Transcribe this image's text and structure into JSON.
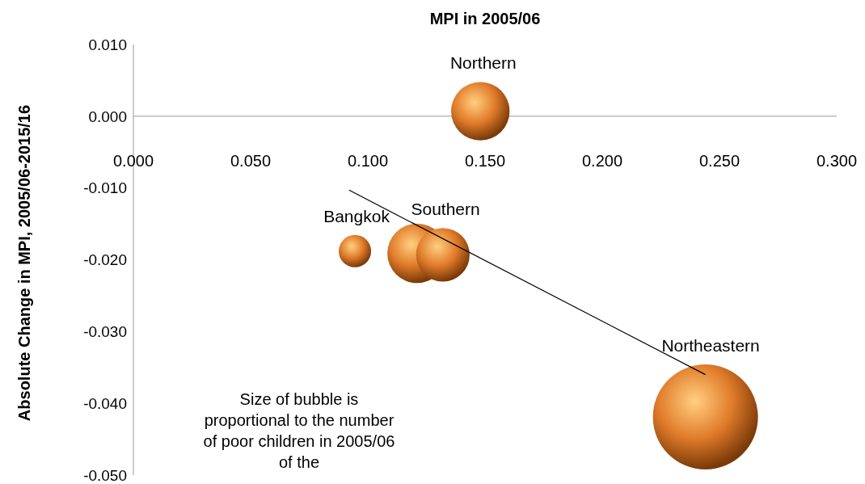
{
  "chart_data": {
    "type": "bubble",
    "xlabel": "MPI in 2005/06",
    "ylabel": "Absolute Change in MPI, 2005/06-2015/16",
    "annotations": [
      "Size of bubble is proportional to the number of poor children in 2005/06 of the"
    ],
    "xlim": [
      0,
      0.3
    ],
    "xticks": [
      {
        "value": 0,
        "label": "0.000"
      },
      {
        "value": 0.05,
        "label": "0.050"
      },
      {
        "value": 0.1,
        "label": "0.100"
      },
      {
        "value": 0.15,
        "label": "0.150"
      },
      {
        "value": 0.2,
        "label": "0.200"
      },
      {
        "value": 0.25,
        "label": "0.250"
      },
      {
        "value": 0.3,
        "label": "0.300"
      }
    ],
    "ylim": [
      -0.05,
      0.01
    ],
    "yticks": [
      {
        "value": 0.01,
        "label": "0.010"
      },
      {
        "value": 0,
        "label": "0.000"
      },
      {
        "value": -0.01,
        "label": "-0.010"
      },
      {
        "value": -0.02,
        "label": "-0.020"
      },
      {
        "value": -0.03,
        "label": "-0.030"
      },
      {
        "value": -0.04,
        "label": "-0.040"
      },
      {
        "value": -0.05,
        "label": "-0.050"
      }
    ],
    "series": [
      {
        "name": "Northern",
        "color": "#e07b2a",
        "x": [
          0.148
        ],
        "values": [
          0.0007
        ],
        "sizes": [
          0.31
        ]
      },
      {
        "name": "Bangkok",
        "color": "#e07b2a",
        "x": [
          0.0945
        ],
        "values": [
          -0.0188
        ],
        "sizes": [
          0.095
        ]
      },
      {
        "color": "#e07b2a",
        "x": [
          0.121
        ],
        "values": [
          -0.0191
        ],
        "sizes": [
          0.32
        ]
      },
      {
        "name": "Southern",
        "color": "#e07b2a",
        "x": [
          0.132
        ],
        "values": [
          -0.0193
        ],
        "sizes": [
          0.26
        ]
      },
      {
        "name": "Northeastern",
        "color": "#e07b2a",
        "x": [
          0.244
        ],
        "values": [
          -0.0419
        ],
        "sizes": [
          1
        ]
      },
      {
        "type": "line",
        "color": "#000000",
        "x": [
          0.092,
          0.244
        ],
        "values": [
          -0.0103,
          -0.036
        ]
      }
    ]
  }
}
